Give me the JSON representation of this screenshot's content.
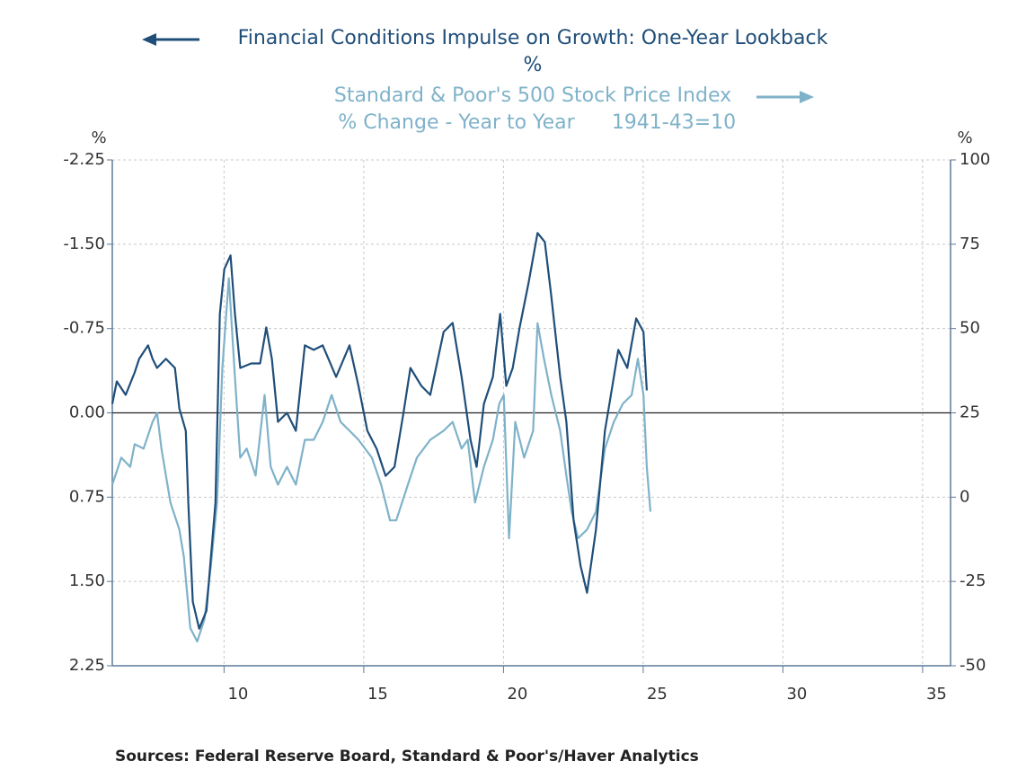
{
  "chart_data": {
    "type": "line",
    "y_label": "%",
    "y_axis_unit": "%",
    "y2_axis_unit": "%",
    "y2_units": "% Change - Year to Year",
    "y2_note": "1941-43=10",
    "source": "Sources:  Federal Reserve Board, Standard & Poor's/Haver Analytics",
    "xlim": [
      6,
      36
    ],
    "xticks": [
      10,
      15,
      20,
      25,
      30,
      35
    ],
    "ylim": [
      2.25,
      -2.25
    ],
    "yticks": [
      {
        "value": 2.25,
        "label": "2.25"
      },
      {
        "value": 1.5,
        "label": "1.50"
      },
      0.75,
      {
        "value": 0,
        "label": "0.00"
      },
      -0.75,
      {
        "value": -1.5,
        "label": "-1.50"
      },
      -2.25
    ],
    "y2lim": [
      -50,
      100
    ],
    "y2ticks": [
      -50,
      -25,
      0,
      25,
      50,
      75,
      100
    ],
    "hline": 0,
    "grid": true,
    "series": [
      {
        "name": "Financial Conditions Impulse on Growth: One-Year Lookback",
        "color": "#1f4e79",
        "axis": "y",
        "x": [
          6.0,
          6.16,
          6.48,
          6.8,
          6.96,
          7.28,
          7.44,
          7.6,
          7.92,
          8.24,
          8.4,
          8.63,
          8.72,
          8.88,
          9.11,
          9.37,
          9.69,
          9.85,
          10.01,
          10.23,
          10.39,
          10.58,
          10.97,
          11.29,
          11.51,
          11.71,
          11.93,
          12.25,
          12.57,
          12.89,
          13.21,
          13.53,
          14.01,
          14.49,
          14.81,
          15.13,
          15.46,
          15.78,
          16.1,
          16.42,
          16.67,
          17.06,
          17.38,
          17.86,
          18.18,
          18.5,
          18.82,
          19.04,
          19.3,
          19.62,
          19.88,
          20.1,
          20.33,
          20.58,
          20.9,
          21.22,
          21.48,
          21.71,
          22.03,
          22.25,
          22.51,
          22.76,
          22.99,
          23.31,
          23.63,
          23.79,
          24.11,
          24.43,
          24.75,
          25.01,
          25.13
        ],
        "values": [
          -0.08,
          -0.28,
          -0.16,
          -0.36,
          -0.48,
          -0.6,
          -0.48,
          -0.4,
          -0.48,
          -0.4,
          -0.04,
          0.16,
          0.8,
          1.68,
          1.92,
          1.76,
          0.8,
          -0.88,
          -1.28,
          -1.4,
          -0.88,
          -0.4,
          -0.44,
          -0.44,
          -0.76,
          -0.48,
          0.08,
          0.0,
          0.16,
          -0.6,
          -0.56,
          -0.6,
          -0.32,
          -0.6,
          -0.24,
          0.16,
          0.32,
          0.56,
          0.48,
          0.0,
          -0.4,
          -0.24,
          -0.16,
          -0.72,
          -0.8,
          -0.32,
          0.24,
          0.48,
          -0.08,
          -0.32,
          -0.88,
          -0.24,
          -0.4,
          -0.76,
          -1.16,
          -1.6,
          -1.52,
          -1.04,
          -0.32,
          0.08,
          0.96,
          1.36,
          1.6,
          1.04,
          0.16,
          -0.08,
          -0.56,
          -0.4,
          -0.84,
          -0.72,
          -0.2
        ]
      },
      {
        "name": "Standard & Poor's 500 Stock Price Index",
        "color": "#7fb2c9",
        "axis": "y2",
        "x": [
          6.0,
          6.32,
          6.64,
          6.8,
          7.12,
          7.44,
          7.6,
          7.76,
          8.08,
          8.4,
          8.56,
          8.79,
          9.04,
          9.3,
          9.53,
          9.75,
          9.94,
          10.17,
          10.39,
          10.58,
          10.81,
          11.13,
          11.45,
          11.67,
          11.93,
          12.25,
          12.57,
          12.89,
          13.21,
          13.53,
          13.85,
          14.17,
          14.49,
          14.81,
          15.29,
          15.62,
          15.94,
          16.16,
          16.58,
          16.9,
          17.38,
          17.86,
          18.18,
          18.5,
          18.72,
          18.98,
          19.3,
          19.62,
          19.85,
          20.01,
          20.2,
          20.42,
          20.74,
          21.06,
          21.22,
          21.45,
          21.71,
          22.03,
          22.25,
          22.44,
          22.67,
          22.99,
          23.31,
          23.63,
          23.95,
          24.27,
          24.59,
          24.81,
          25.01,
          25.13,
          25.26
        ],
        "values": [
          3.7,
          11.7,
          9.0,
          15.7,
          14.4,
          22.3,
          25.0,
          14.4,
          -1.6,
          -9.6,
          -17.6,
          -38.8,
          -42.8,
          -36.2,
          -20.2,
          -1.6,
          38.3,
          64.9,
          35.6,
          11.7,
          14.4,
          6.4,
          30.3,
          9.0,
          3.7,
          9.0,
          3.7,
          17.0,
          17.0,
          22.3,
          30.3,
          22.3,
          19.7,
          17.0,
          11.7,
          3.7,
          -6.9,
          -6.9,
          3.7,
          11.7,
          17.0,
          19.7,
          22.3,
          14.4,
          17.0,
          -1.6,
          9.0,
          17.0,
          27.7,
          30.3,
          -12.2,
          22.3,
          11.7,
          19.7,
          51.6,
          41.0,
          30.3,
          19.7,
          6.4,
          -4.3,
          -12.2,
          -9.6,
          -4.3,
          14.4,
          22.3,
          27.7,
          30.3,
          41.0,
          30.3,
          9.0,
          -4.3
        ]
      }
    ]
  }
}
